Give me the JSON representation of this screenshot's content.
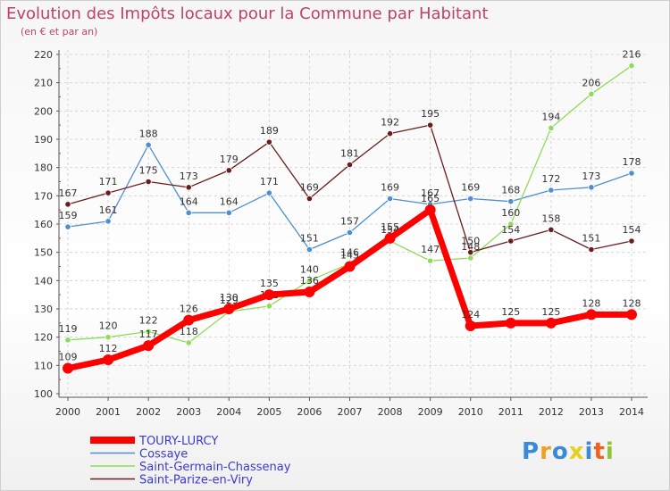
{
  "title": "Evolution des Impôts locaux pour la Commune par Habitant",
  "subtitle": "(en € et par an)",
  "logo": "Proxiti",
  "chart_data": {
    "type": "line",
    "x": [
      "2000",
      "2001",
      "2002",
      "2003",
      "2004",
      "2005",
      "2006",
      "2007",
      "2008",
      "2009",
      "2010",
      "2011",
      "2012",
      "2013",
      "2014"
    ],
    "ylim": [
      100,
      220
    ],
    "yticks": [
      100,
      110,
      120,
      130,
      140,
      150,
      160,
      170,
      180,
      190,
      200,
      210,
      220
    ],
    "grid": true,
    "legend_position": "bottom-left",
    "series": [
      {
        "name": "TOURY-LURCY",
        "color": "#ff0000",
        "values": [
          109,
          112,
          117,
          126,
          130,
          135,
          136,
          145,
          155,
          165,
          124,
          125,
          125,
          128,
          128
        ]
      },
      {
        "name": "Cossaye",
        "color": "#4d8fcf",
        "values": [
          159,
          161,
          188,
          164,
          164,
          171,
          151,
          157,
          169,
          167,
          169,
          168,
          172,
          173,
          178
        ]
      },
      {
        "name": "Saint-Germain-Chassenay",
        "color": "#8fdc5a",
        "values": [
          119,
          120,
          122,
          118,
          129,
          131,
          140,
          146,
          154,
          147,
          148,
          160,
          194,
          206,
          216
        ]
      },
      {
        "name": "Saint-Parize-en-Viry",
        "color": "#6b1c1c",
        "values": [
          167,
          171,
          175,
          173,
          179,
          189,
          169,
          181,
          192,
          195,
          150,
          154,
          158,
          151,
          154
        ]
      }
    ]
  }
}
